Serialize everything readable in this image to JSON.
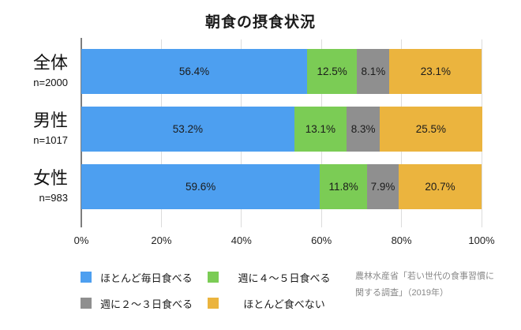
{
  "chart_data": {
    "type": "bar",
    "orientation": "horizontal",
    "stacked": true,
    "title": "朝食の摂食状況",
    "categories": [
      "全体",
      "男性",
      "女性"
    ],
    "category_sublabels": [
      "n=2000",
      "n=1017",
      "n=983"
    ],
    "series": [
      {
        "name": "ほとんど毎日食べる",
        "color": "#4D9FF0",
        "values": [
          56.4,
          53.2,
          59.6
        ]
      },
      {
        "name": "週に４〜５日食べる",
        "color": "#7BCC55",
        "values": [
          12.5,
          13.1,
          11.8
        ]
      },
      {
        "name": "週に２〜３日食べる",
        "color": "#8F8F8F",
        "values": [
          8.1,
          8.3,
          7.9
        ]
      },
      {
        "name": "ほとんど食べない",
        "color": "#EBB43E",
        "values": [
          23.1,
          25.5,
          20.7
        ]
      }
    ],
    "value_suffix": "%",
    "xlim": [
      0,
      100
    ],
    "x_tick_labels": [
      "0%",
      "20%",
      "40%",
      "60%",
      "80%",
      "100%"
    ],
    "grid": true,
    "legend_position": "bottom-left"
  },
  "source": {
    "line1": "農林水産省「若い世代の食事習慣に",
    "line2": "関する調査」（2019年）"
  }
}
